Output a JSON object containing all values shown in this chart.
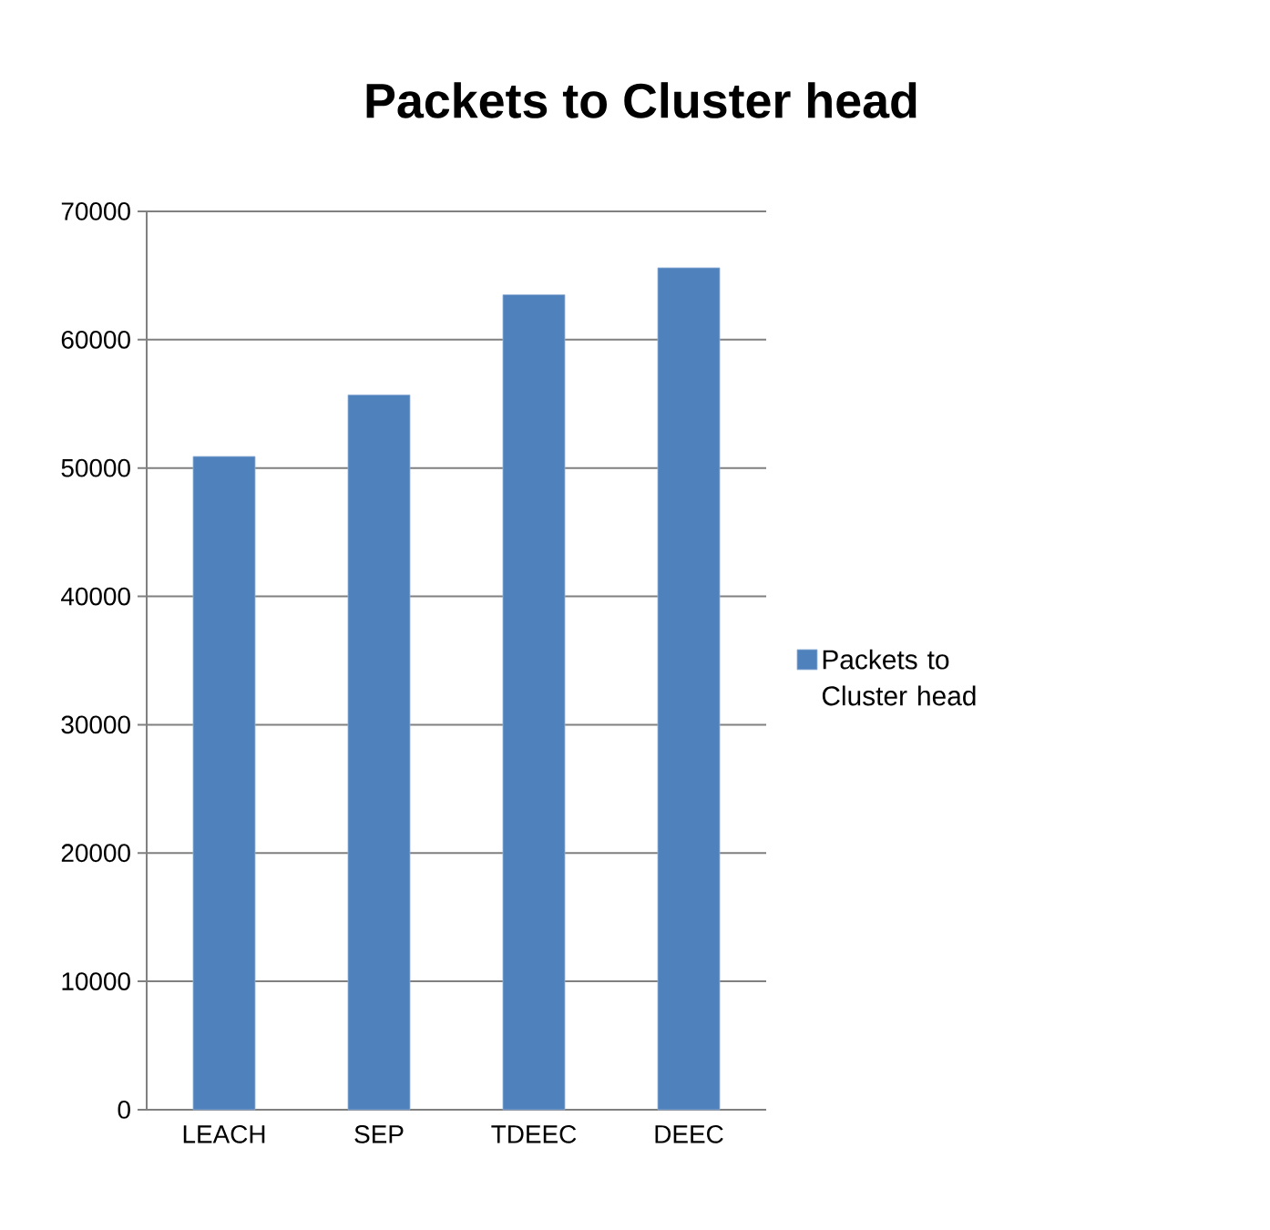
{
  "chart_data": {
    "type": "bar",
    "title": "Packets to Cluster head",
    "categories": [
      "LEACH",
      "SEP",
      "TDEEC",
      "DEEC"
    ],
    "series": [
      {
        "name": "Packets to Cluster head",
        "color": "#4f81bd",
        "values": [
          50900,
          55700,
          63500,
          65600
        ]
      }
    ],
    "ylim": [
      0,
      70000
    ],
    "yticks": [
      0,
      10000,
      20000,
      30000,
      40000,
      50000,
      60000,
      70000
    ],
    "grid": "y",
    "legend": "right"
  }
}
